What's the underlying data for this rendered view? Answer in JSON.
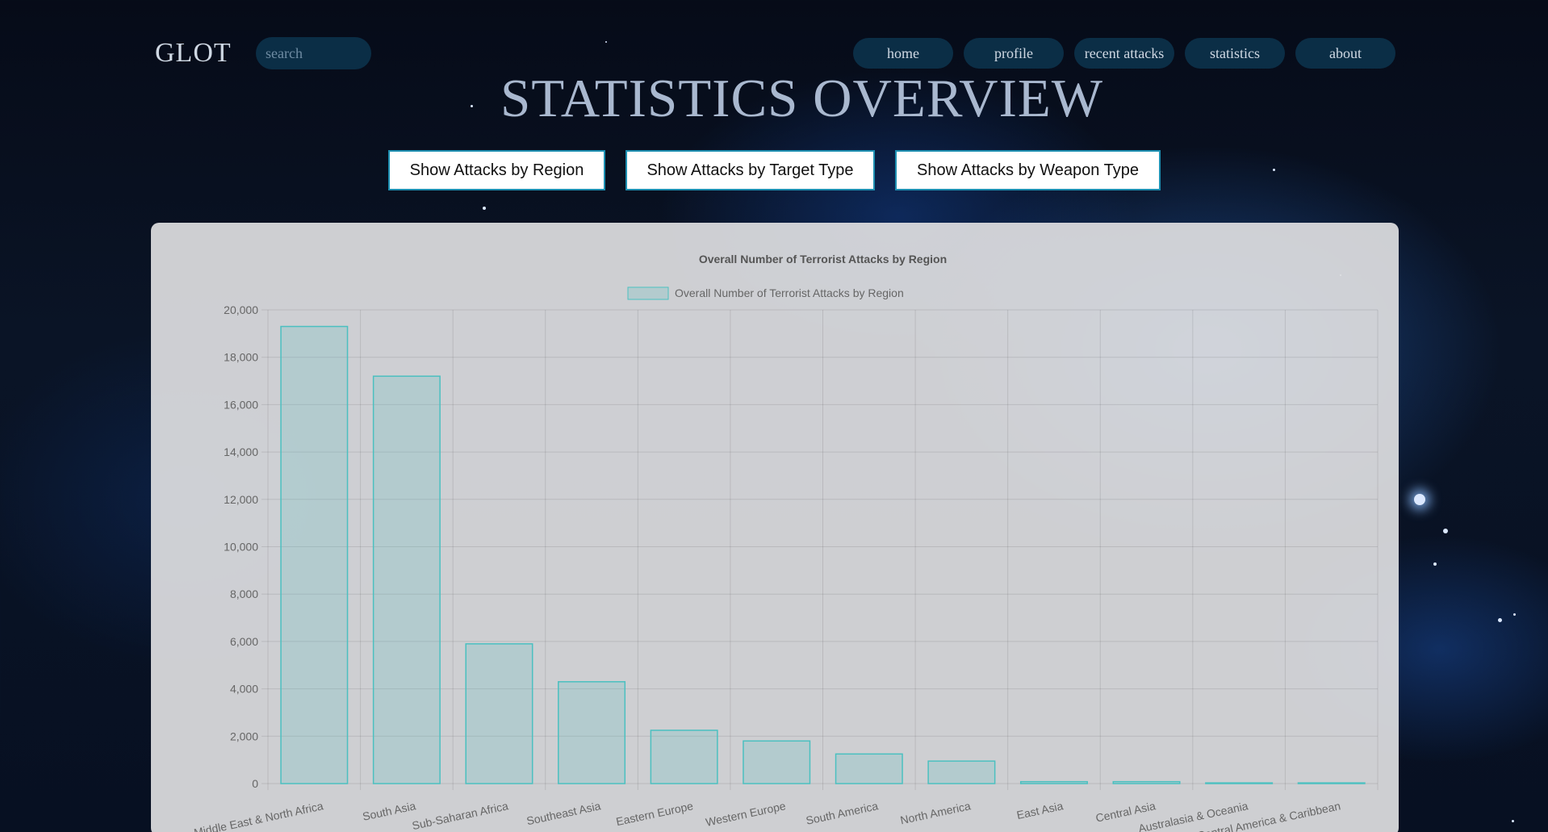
{
  "header": {
    "logo": "GLOT",
    "search_placeholder": "search",
    "nav": [
      "home",
      "profile",
      "recent attacks",
      "statistics",
      "about"
    ]
  },
  "page_title": "STATISTICS OVERVIEW",
  "buttons": {
    "region": "Show Attacks by Region",
    "target": "Show Attacks by Target Type",
    "weapon": "Show Attacks by Weapon Type"
  },
  "colors": {
    "bar_fill": "rgba(75,192,192,0.2)",
    "bar_border": "#4bc0c0",
    "nav_bg": "#0b2e46"
  },
  "chart_data": {
    "type": "bar",
    "title": "Overall Number of Terrorist Attacks by Region",
    "legend": "Overall Number of Terrorist Attacks by Region",
    "legend_position": "top",
    "grid": true,
    "ylim": [
      0,
      20000
    ],
    "yticks": [
      "20,000",
      "18,000",
      "16,000",
      "14,000",
      "12,000",
      "10,000",
      "8,000",
      "6,000",
      "4,000",
      "2,000",
      "0"
    ],
    "categories": [
      "Middle East & North Africa",
      "South Asia",
      "Sub-Saharan Africa",
      "Southeast Asia",
      "Eastern Europe",
      "Western Europe",
      "South America",
      "North America",
      "East Asia",
      "Central Asia",
      "Australasia & Oceania",
      "Central America & Caribbean"
    ],
    "values": [
      19300,
      17200,
      5900,
      4300,
      2250,
      1800,
      1250,
      950,
      80,
      80,
      30,
      30
    ]
  }
}
